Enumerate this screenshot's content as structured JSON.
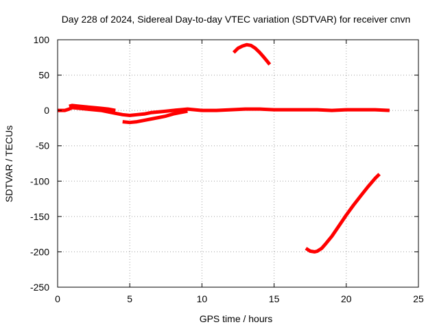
{
  "chart_data": {
    "type": "line",
    "title": "Day 228 of 2024, Sidereal Day-to-day VTEC variation (SDTVAR) for receiver cnvn",
    "xlabel": "GPS time / hours",
    "ylabel": "SDTVAR / TECUs",
    "xlim": [
      0,
      25
    ],
    "ylim": [
      -250,
      100
    ],
    "x_ticks": [
      0,
      5,
      10,
      15,
      20,
      25
    ],
    "y_ticks": [
      -250,
      -200,
      -150,
      -100,
      -50,
      0,
      50,
      100
    ],
    "grid": true,
    "legend": "none",
    "series_color": "#ff0000",
    "series": [
      {
        "name": "baseline",
        "x": [
          0,
          0.5,
          0.8,
          1.0,
          1.5,
          2.0,
          2.5,
          3.0,
          3.5,
          4.0,
          4.5,
          5.0,
          5.5,
          6.0,
          6.5,
          7.0,
          7.5,
          8.0,
          8.5,
          9.0,
          9.5,
          10,
          11,
          12,
          13,
          14,
          15,
          16,
          17,
          18,
          19,
          20,
          21,
          22,
          23
        ],
        "y": [
          0,
          0,
          2,
          4,
          3,
          2,
          1,
          0,
          -2,
          -4,
          -6,
          -7,
          -6,
          -5,
          -3,
          -2,
          -1,
          0,
          1,
          2,
          1,
          0,
          0,
          1,
          2,
          2,
          1,
          1,
          1,
          1,
          0,
          1,
          1,
          1,
          0
        ]
      },
      {
        "name": "baseline-lower",
        "x": [
          4.5,
          5.0,
          5.5,
          6.0,
          6.5,
          7.0,
          7.5,
          8.0,
          8.5,
          9.0
        ],
        "y": [
          -16,
          -17,
          -16,
          -14,
          -12,
          -10,
          -8,
          -5,
          -3,
          -1
        ]
      },
      {
        "name": "baseline-upper",
        "x": [
          0.8,
          1.0,
          1.5,
          2.0,
          2.5,
          3.0,
          3.5,
          4.0
        ],
        "y": [
          6,
          7,
          6,
          5,
          4,
          3,
          2,
          0
        ]
      },
      {
        "name": "arc-high",
        "x": [
          12.2,
          12.5,
          12.8,
          13.1,
          13.4,
          13.7,
          14.0,
          14.3,
          14.5,
          14.7
        ],
        "y": [
          82,
          88,
          91,
          93,
          92,
          88,
          82,
          75,
          70,
          65
        ]
      },
      {
        "name": "arc-low",
        "x": [
          17.2,
          17.5,
          17.8,
          18.0,
          18.3,
          18.6,
          19.0,
          19.5,
          20.0,
          20.5,
          21.0,
          21.5,
          22.0,
          22.3
        ],
        "y": [
          -195,
          -199,
          -200,
          -199,
          -195,
          -188,
          -178,
          -163,
          -148,
          -134,
          -121,
          -108,
          -96,
          -90
        ]
      }
    ]
  }
}
